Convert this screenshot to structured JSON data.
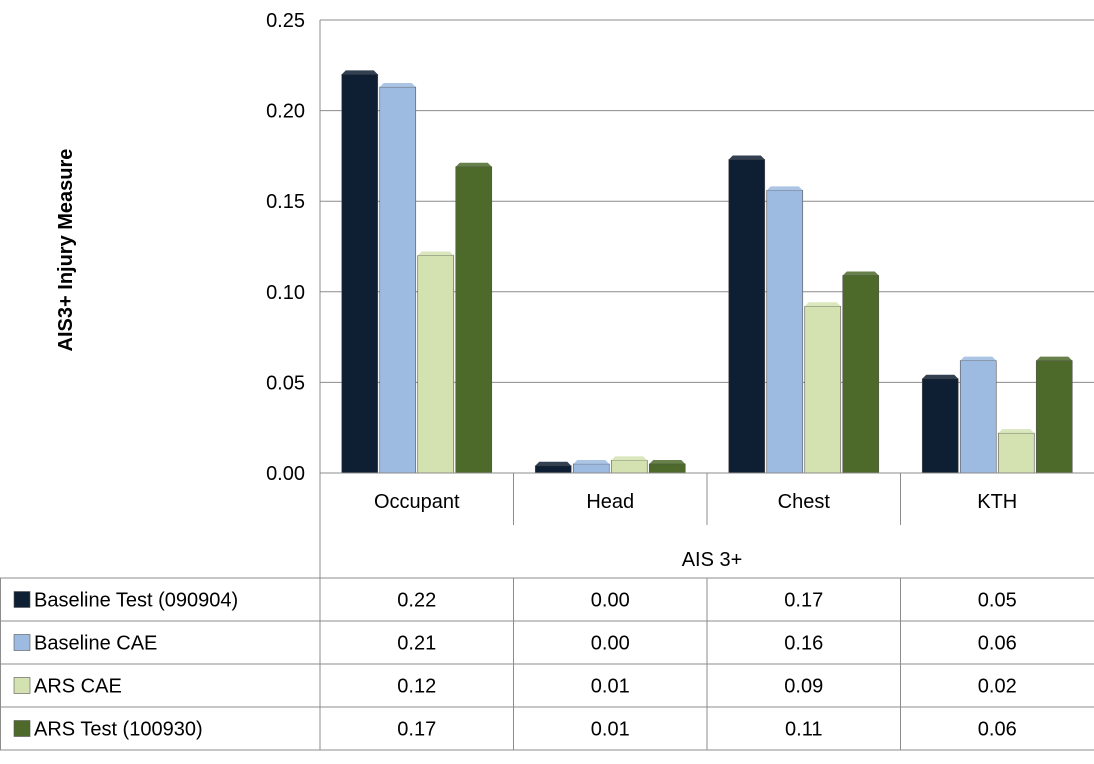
{
  "chart_data": {
    "type": "bar",
    "ylabel": "AIS3+ Injury Measure",
    "xlabel": "AIS 3+",
    "ylim": [
      0,
      0.25
    ],
    "yticks": [
      "0.00",
      "0.05",
      "0.10",
      "0.15",
      "0.20",
      "0.25"
    ],
    "grid": true,
    "legend_placement": "data-table",
    "categories": [
      "Occupant",
      "Head",
      "Chest",
      "KTH"
    ],
    "series": [
      {
        "name": "Baseline Test (090904)",
        "values": [
          0.22,
          0.004,
          0.173,
          0.052
        ],
        "table": [
          "0.22",
          "0.00",
          "0.17",
          "0.05"
        ],
        "color": "#0f1f33"
      },
      {
        "name": "Baseline CAE",
        "values": [
          0.213,
          0.005,
          0.156,
          0.062
        ],
        "table": [
          "0.21",
          "0.00",
          "0.16",
          "0.06"
        ],
        "color": "#9dbbe0"
      },
      {
        "name": "ARS CAE",
        "values": [
          0.12,
          0.007,
          0.092,
          0.022
        ],
        "table": [
          "0.12",
          "0.01",
          "0.09",
          "0.02"
        ],
        "color": "#d3e2b0"
      },
      {
        "name": "ARS Test  (100930)",
        "values": [
          0.169,
          0.005,
          0.109,
          0.062
        ],
        "table": [
          "0.17",
          "0.01",
          "0.11",
          "0.06"
        ],
        "color": "#4d6a2a"
      }
    ]
  }
}
